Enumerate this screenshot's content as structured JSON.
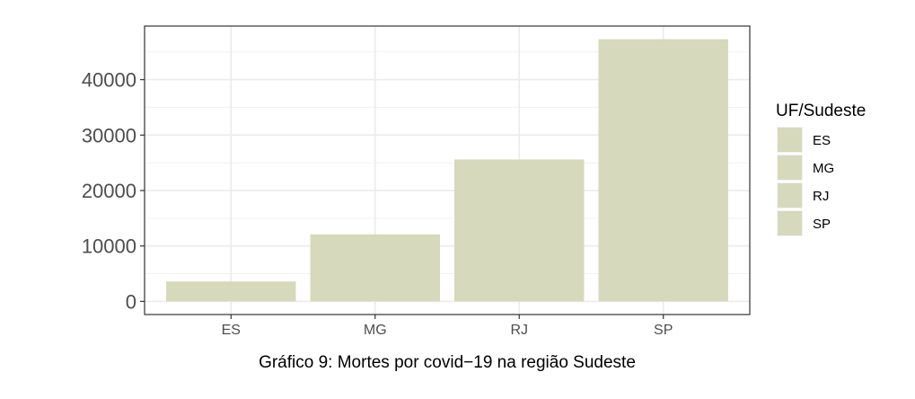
{
  "chart_data": {
    "type": "bar",
    "title": "",
    "xlabel": "Gráfico 9: Mortes por covid−19 na região Sudeste",
    "ylabel": "",
    "categories": [
      "ES",
      "MG",
      "RJ",
      "SP"
    ],
    "values": [
      3600,
      12100,
      25600,
      47300
    ],
    "ylim": [
      -2365,
      49665
    ],
    "yticks": [
      0,
      10000,
      20000,
      30000,
      40000
    ],
    "ytick_labels": [
      "0",
      "10000",
      "20000",
      "30000",
      "40000"
    ],
    "grid": true,
    "legend": {
      "title": "UF/Sudeste",
      "placement": "right",
      "entries": [
        "ES",
        "MG",
        "RJ",
        "SP"
      ]
    },
    "colors": {
      "bar": "#d6d9bc",
      "grid_major": "#ebebeb",
      "grid_minor": "#f2f2f2",
      "panel_border": "#333333",
      "legend_key_bg": "#f2f2f2"
    }
  }
}
